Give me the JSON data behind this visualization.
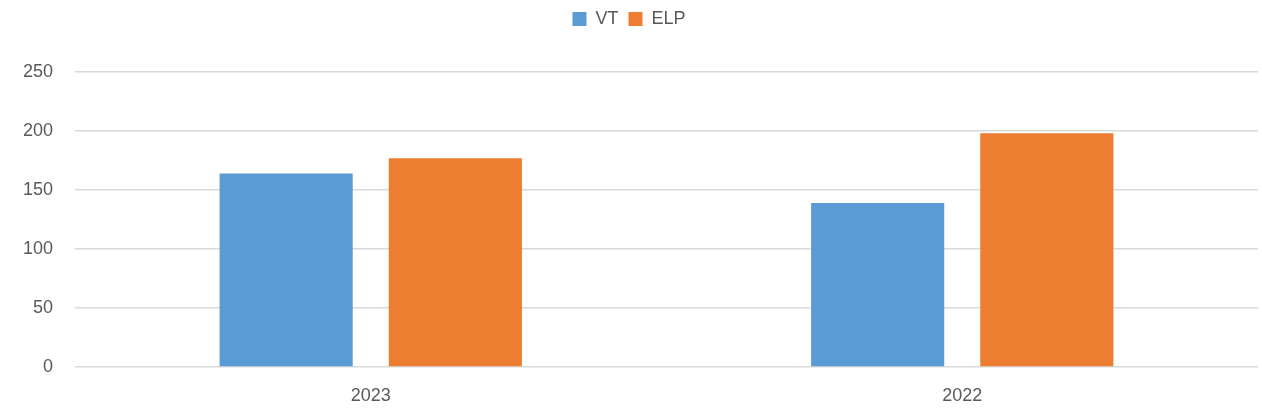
{
  "chart_data": {
    "type": "bar",
    "categories": [
      "2023",
      "2022"
    ],
    "series": [
      {
        "name": "VT",
        "color": "#5b9bd5",
        "values": [
          164,
          139
        ]
      },
      {
        "name": "ELP",
        "color": "#ed7d31",
        "values": [
          177,
          198
        ]
      }
    ],
    "ylim": [
      0,
      250
    ],
    "yticks": [
      0,
      50,
      100,
      150,
      200,
      250
    ],
    "grid": "y",
    "legend": "top"
  }
}
